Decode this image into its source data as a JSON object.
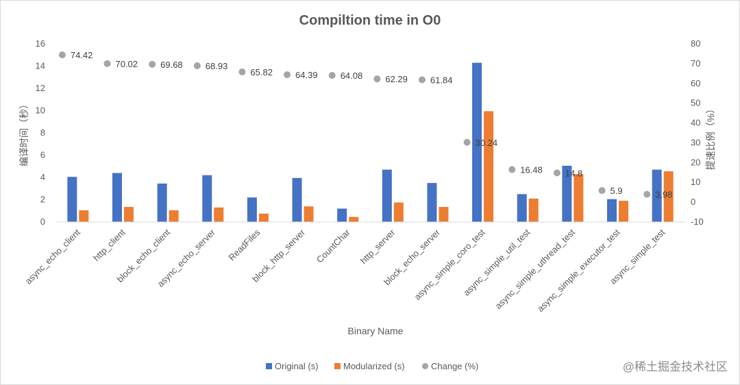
{
  "chart_data": {
    "type": "bar",
    "title": "Compiltion time in O0",
    "xlabel": "Binary Name",
    "ylabel": "编译时间（秒）",
    "y2label": "提速比例（%）",
    "ylim": [
      0,
      16
    ],
    "yticks": [
      0,
      2,
      4,
      6,
      8,
      10,
      12,
      14,
      16
    ],
    "y2lim": [
      -10,
      80
    ],
    "y2ticks": [
      -10,
      0,
      10,
      20,
      30,
      40,
      50,
      60,
      70,
      80
    ],
    "grid": false,
    "legend_position": "bottom",
    "categories": [
      "async_echo_client",
      "http_client",
      "block_echo_client",
      "async_echo_server",
      "ReadFiles",
      "block_http_server",
      "CountChar",
      "http_server",
      "block_echo_server",
      "async_simple_coro_test",
      "async_simple_util_test",
      "async_simple_uthread_test",
      "async_simple_executor_test",
      "async_simple_test"
    ],
    "series": [
      {
        "name": "Original (s)",
        "type": "bar",
        "axis": "left",
        "color": "#4472C4",
        "values": [
          4.05,
          4.4,
          3.45,
          4.2,
          2.2,
          3.95,
          1.2,
          4.7,
          3.5,
          14.3,
          2.5,
          5.05,
          2.05,
          4.7
        ]
      },
      {
        "name": "Modularized (s)",
        "type": "bar",
        "axis": "left",
        "color": "#ED7D31",
        "values": [
          1.05,
          1.35,
          1.05,
          1.3,
          0.75,
          1.4,
          0.45,
          1.75,
          1.35,
          9.95,
          2.1,
          4.3,
          1.9,
          4.55
        ]
      },
      {
        "name": "Change (%)",
        "type": "scatter",
        "axis": "right",
        "color": "#A5A5A5",
        "values": [
          74.42,
          70.02,
          69.68,
          68.93,
          65.82,
          64.39,
          64.08,
          62.29,
          61.84,
          30.24,
          16.48,
          14.8,
          5.9,
          3.98
        ],
        "labels": [
          "74.42",
          "70.02",
          "69.68",
          "68.93",
          "65.82",
          "64.39",
          "64.08",
          "62.29",
          "61.84",
          "30.24",
          "16.48",
          "14.8",
          "5.9",
          "3.98"
        ]
      }
    ]
  },
  "watermark": "@稀土掘金技术社区"
}
